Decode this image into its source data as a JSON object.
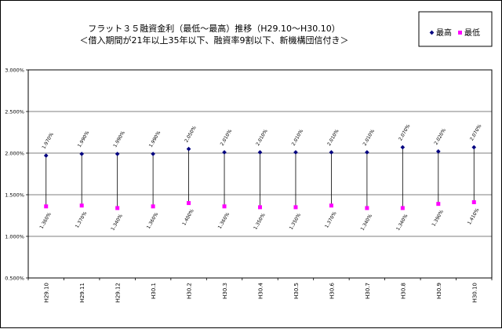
{
  "chart_data": {
    "type": "line",
    "title_lines": [
      "フラット３５融資金利（最低～最高）推移（H29.10～H30.10）",
      "＜借入期間が21年以上35年以下、融資率9割以下、新機構団信付き＞"
    ],
    "categories": [
      "H29.10",
      "H29.11",
      "H29.12",
      "H30.1",
      "H30.2",
      "H30.3",
      "H30.4",
      "H30.5",
      "H30.6",
      "H30.7",
      "H30.8",
      "H30.9",
      "H30.10"
    ],
    "series": [
      {
        "name": "最高",
        "color": "#000080",
        "marker": "diamond",
        "values": [
          1.97,
          1.99,
          1.99,
          1.99,
          2.05,
          2.01,
          2.01,
          2.01,
          2.01,
          2.01,
          2.07,
          2.02,
          2.07
        ],
        "labels": [
          "1.970%",
          "1.990%",
          "1.990%",
          "1.990%",
          "2.050%",
          "2.010%",
          "2.010%",
          "2.010%",
          "2.010%",
          "2.010%",
          "2.070%",
          "2.020%",
          "2.070%"
        ]
      },
      {
        "name": "最低",
        "color": "#ff00ff",
        "marker": "square",
        "values": [
          1.36,
          1.37,
          1.34,
          1.36,
          1.4,
          1.36,
          1.35,
          1.35,
          1.37,
          1.34,
          1.34,
          1.39,
          1.41
        ],
        "labels": [
          "1.360%",
          "1.370%",
          "1.340%",
          "1.360%",
          "1.400%",
          "1.360%",
          "1.350%",
          "1.350%",
          "1.370%",
          "1.340%",
          "1.340%",
          "1.390%",
          "1.410%"
        ]
      }
    ],
    "yticks": [
      "3.000%",
      "2.500%",
      "2.000%",
      "1.500%",
      "1.000%",
      "0.500%"
    ],
    "ytick_values": [
      3.0,
      2.5,
      2.0,
      1.5,
      1.0,
      0.5
    ],
    "ylim": [
      0.5,
      3.0
    ],
    "grid": true,
    "legend_position": "top-right",
    "xlabel": "",
    "ylabel": ""
  }
}
